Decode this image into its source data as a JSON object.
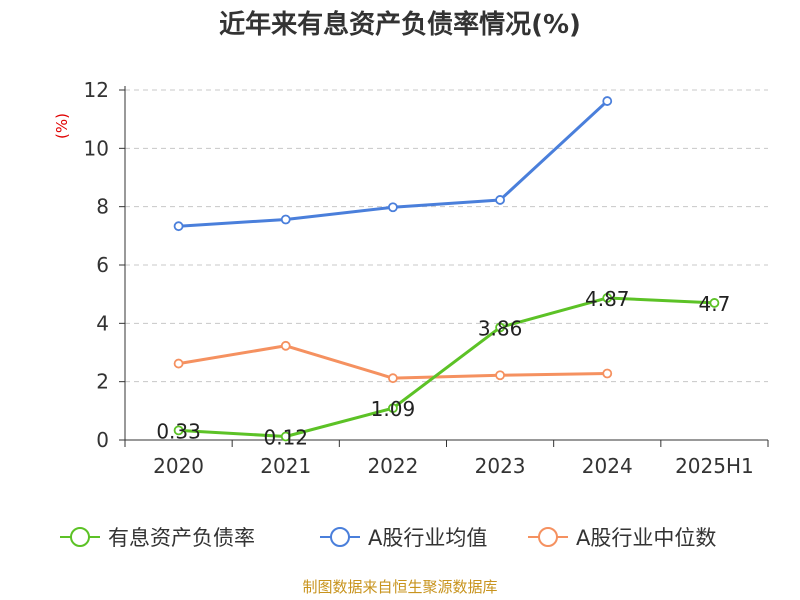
{
  "chart_data": {
    "type": "line",
    "title": "近年来有息资产负债率情况(%)",
    "unit_label": "(%)",
    "categories": [
      "2020",
      "2021",
      "2022",
      "2023",
      "2024",
      "2025H1"
    ],
    "ylim": [
      0,
      12
    ],
    "yticks": [
      0,
      2,
      4,
      6,
      8,
      10,
      12
    ],
    "grid": true,
    "legend_position": "bottom",
    "series": [
      {
        "name": "有息资产负债率",
        "color": "#5cc226",
        "values": [
          0.33,
          0.12,
          1.09,
          3.86,
          4.87,
          4.7
        ],
        "labels": [
          "0.33",
          "0.12",
          "1.09",
          "3.86",
          "4.87",
          "4.7"
        ]
      },
      {
        "name": "A股行业均值",
        "color": "#4a7fdb",
        "values": [
          7.33,
          7.56,
          7.98,
          8.23,
          11.62,
          null
        ]
      },
      {
        "name": "A股行业中位数",
        "color": "#f59160",
        "values": [
          2.62,
          3.23,
          2.12,
          2.22,
          2.28,
          null
        ]
      }
    ]
  },
  "source_text": "制图数据来自恒生聚源数据库"
}
